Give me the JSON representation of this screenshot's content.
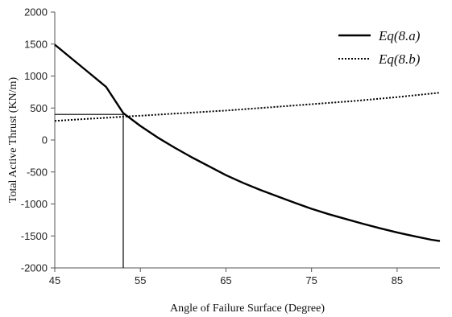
{
  "chart_data": {
    "type": "line",
    "xlabel": "Angle of Failure Surface (Degree)",
    "ylabel": "Total Active Thrust (KN/m)",
    "xlim": [
      45,
      90
    ],
    "ylim": [
      -2000,
      2000
    ],
    "x_ticks": [
      "45",
      "55",
      "65",
      "75",
      "85"
    ],
    "y_ticks": [
      "2000",
      "1500",
      "1000",
      "500",
      "0",
      "-500",
      "-1000",
      "-1500",
      "-2000"
    ],
    "grid": false,
    "legend_position": "top-right",
    "series": [
      {
        "name": "Eq(8.a)",
        "style": "solid",
        "color": "#000000",
        "x": [
          45,
          47,
          49,
          51,
          53,
          55,
          57,
          59,
          61,
          63,
          65,
          67,
          69,
          71,
          73,
          75,
          77,
          79,
          81,
          83,
          85,
          87,
          89,
          90
        ],
        "y": [
          1490,
          1270,
          1050,
          830,
          420,
          220,
          40,
          -120,
          -270,
          -410,
          -550,
          -670,
          -780,
          -880,
          -980,
          -1075,
          -1160,
          -1235,
          -1310,
          -1380,
          -1445,
          -1505,
          -1560,
          -1580
        ]
      },
      {
        "name": "Eq(8.b)",
        "style": "dotted",
        "color": "#000000",
        "x": [
          45,
          50,
          55,
          60,
          65,
          70,
          75,
          80,
          85,
          90
        ],
        "y": [
          300,
          340,
          380,
          420,
          460,
          510,
          560,
          610,
          670,
          740
        ]
      }
    ],
    "annotations": {
      "intersection": {
        "x": 53,
        "y": 400
      },
      "vertical_drop_to_y": -2000,
      "horizontal_to_x": 45
    }
  }
}
